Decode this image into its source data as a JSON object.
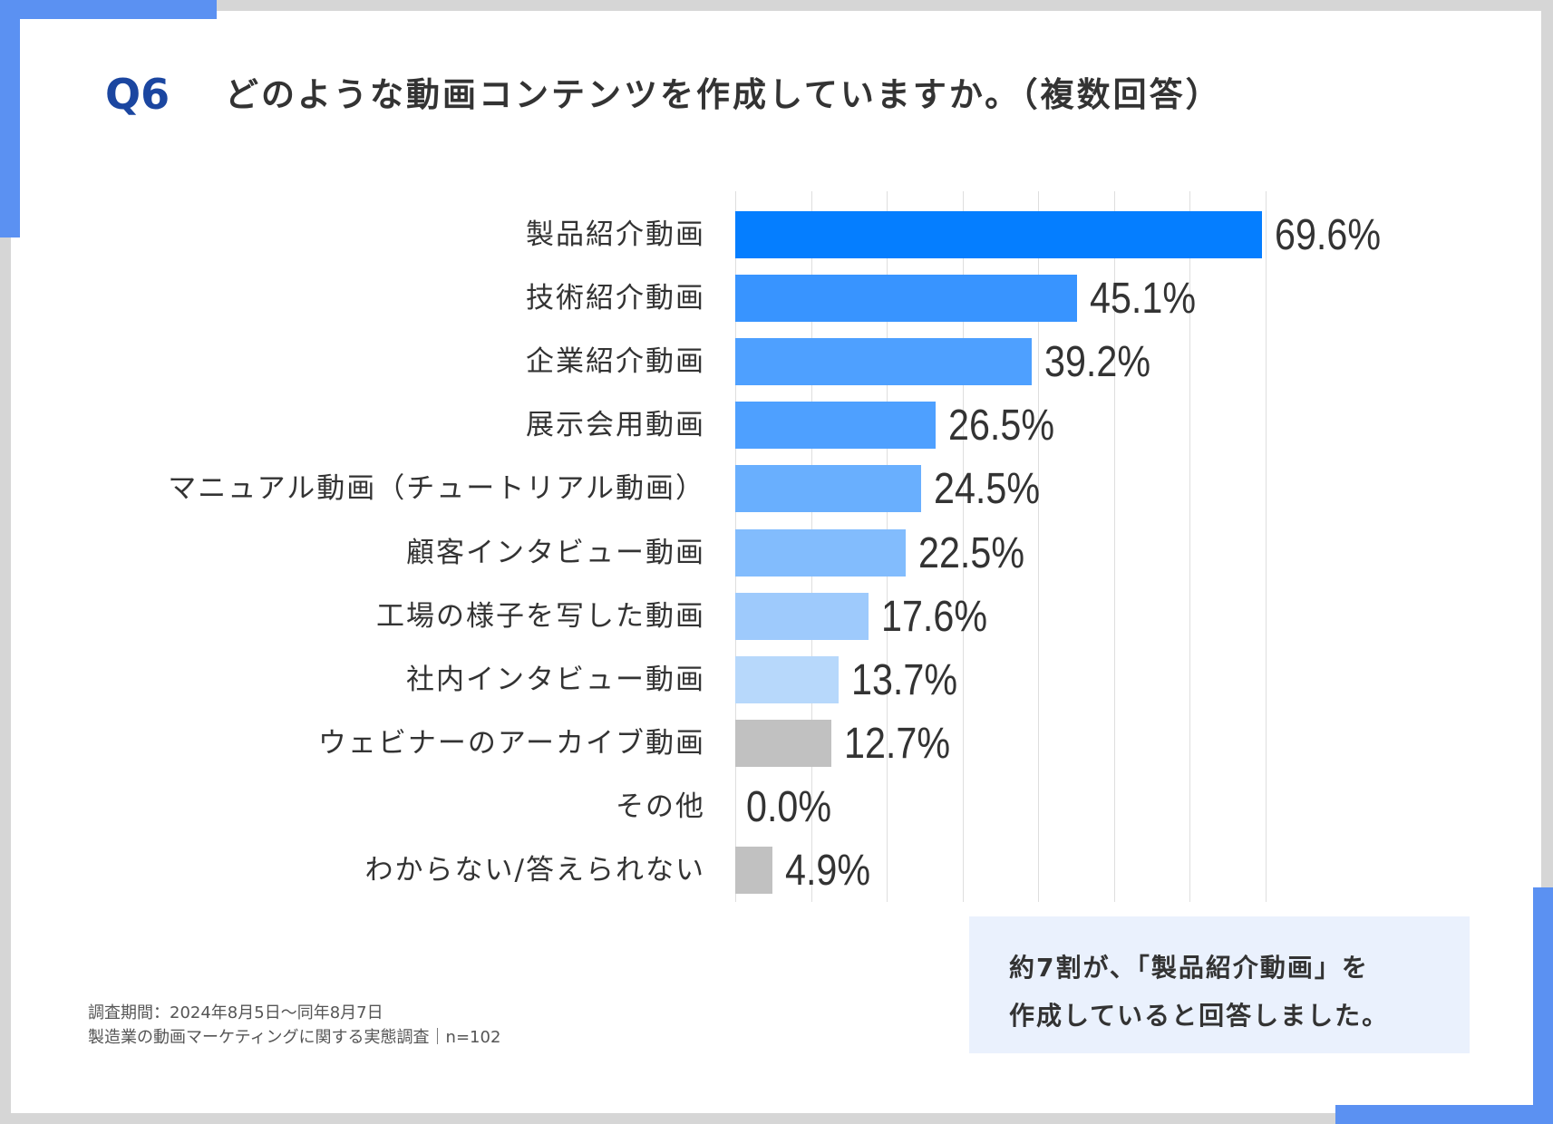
{
  "header": {
    "question_number": "Q6",
    "title": "どのような動画コンテンツを作成していますか。（複数回答）"
  },
  "colors": {
    "frame_accent": "#5b91f2",
    "question_number": "#1b46a0",
    "gray_bar": "#c0c0c0",
    "callout_bg": "#eaf1fd"
  },
  "chart_data": {
    "type": "bar",
    "orientation": "horizontal",
    "title": "どのような動画コンテンツを作成していますか。（複数回答）",
    "xlabel": "",
    "ylabel": "",
    "xlim": [
      0,
      70
    ],
    "grid_step": 10,
    "grid": true,
    "unit": "%",
    "categories": [
      "製品紹介動画",
      "技術紹介動画",
      "企業紹介動画",
      "展示会用動画",
      "マニュアル動画（チュートリアル動画）",
      "顧客インタビュー動画",
      "工場の様子を写した動画",
      "社内インタビュー動画",
      "ウェビナーのアーカイブ動画",
      "その他",
      "わからない/答えられない"
    ],
    "values": [
      69.6,
      45.1,
      39.2,
      26.5,
      24.5,
      22.5,
      17.6,
      13.7,
      12.7,
      0.0,
      4.9
    ],
    "value_labels": [
      "69.6%",
      "45.1%",
      "39.2%",
      "26.5%",
      "24.5%",
      "22.5%",
      "17.6%",
      "13.7%",
      "12.7%",
      "0.0%",
      "4.9%"
    ],
    "bar_colors": [
      "#007bff",
      "#3492ff",
      "#4a9eff",
      "#4a9eff",
      "#66adfe",
      "#80bbfd",
      "#9cc9fc",
      "#b6d7fb",
      "#c0c0c0",
      "#c0c0c0",
      "#c0c0c0"
    ]
  },
  "callout": {
    "line1": "約7割が、「製品紹介動画」を",
    "line2": "作成していると回答しました。"
  },
  "footnote": {
    "line1": "調査期間：2024年8月5日〜同年8月7日",
    "line2": "製造業の動画マーケティングに関する実態調査｜n=102"
  }
}
